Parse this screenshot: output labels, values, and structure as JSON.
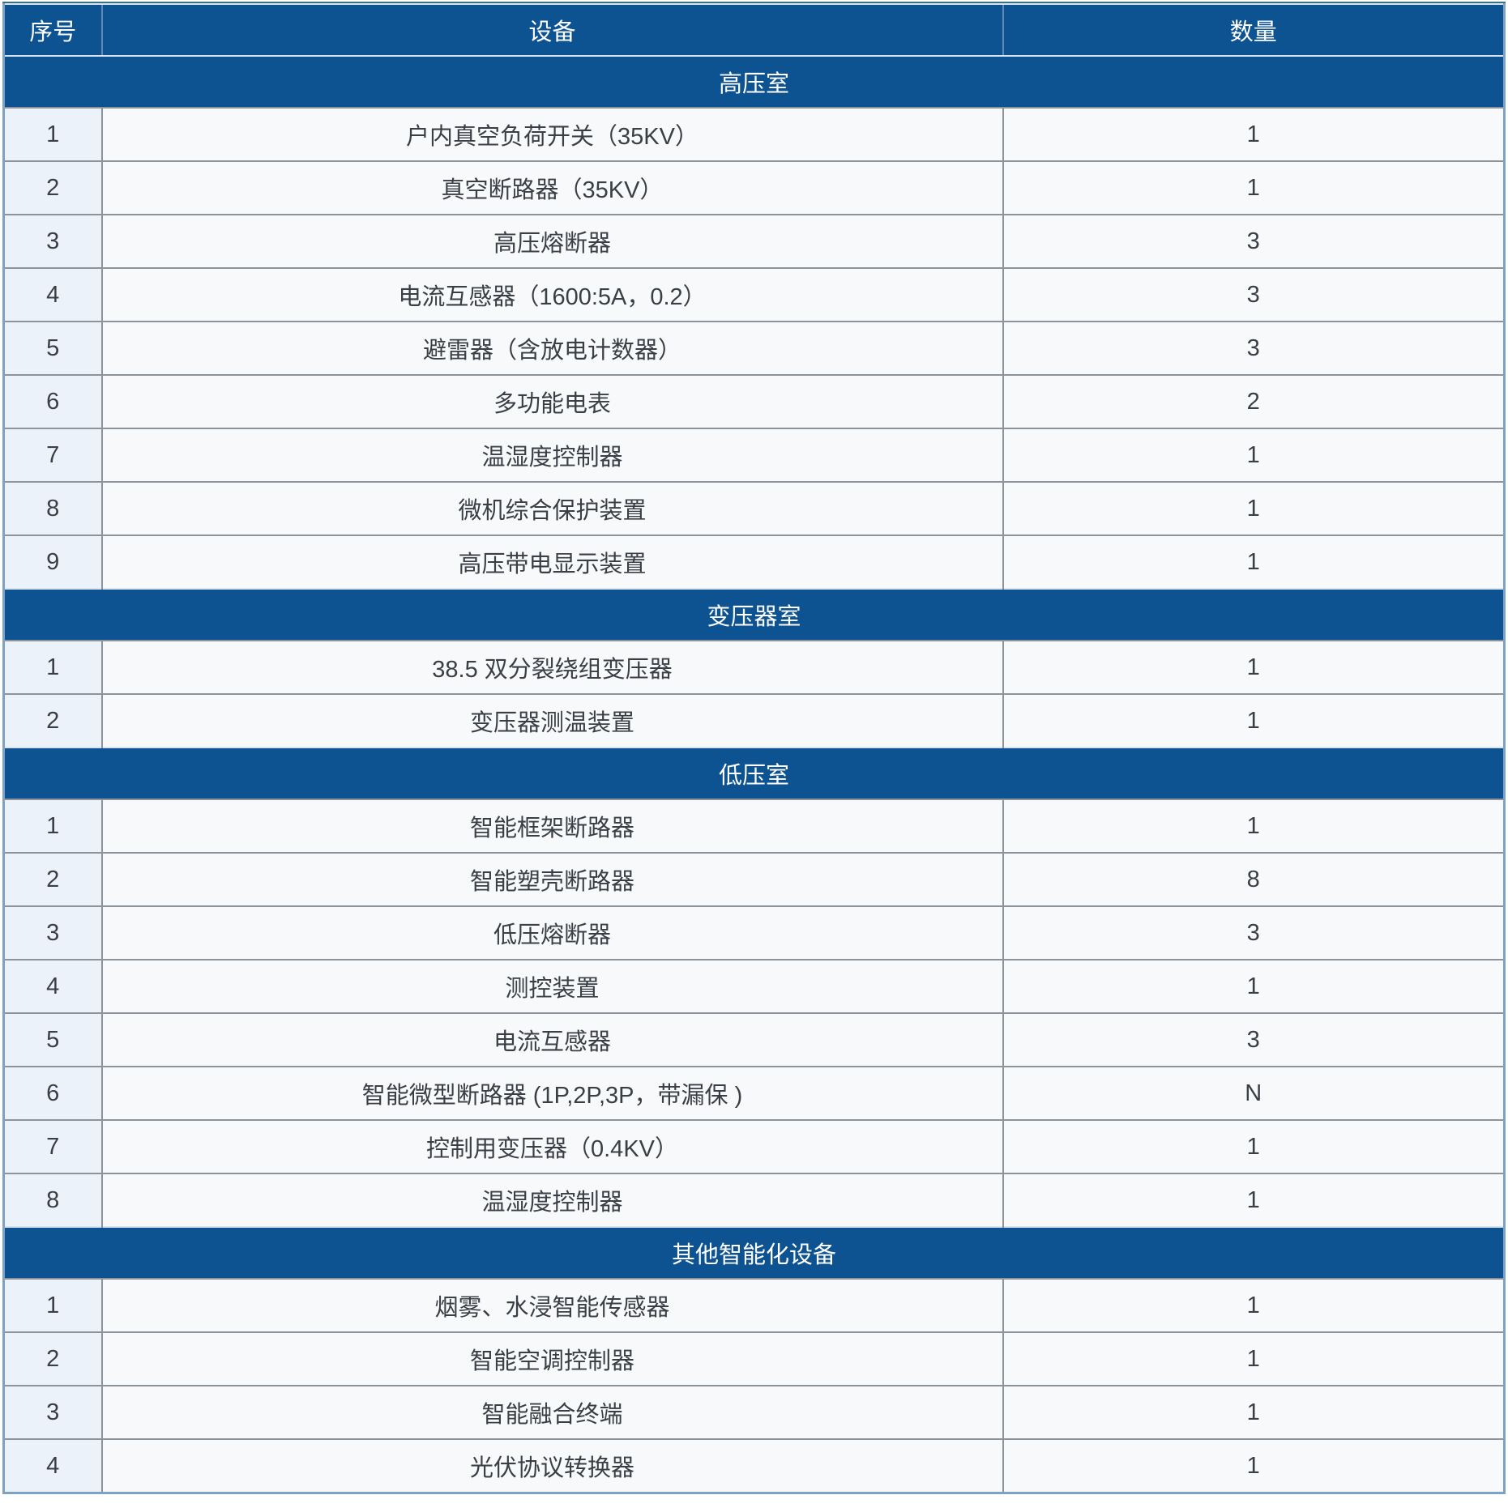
{
  "table": {
    "columns": [
      "序号",
      "设备",
      "数量"
    ],
    "sections": [
      {
        "title": "高压室",
        "rows": [
          [
            "1",
            "户内真空负荷开关（35KV）",
            "1"
          ],
          [
            "2",
            "真空断路器（35KV）",
            "1"
          ],
          [
            "3",
            "高压熔断器",
            "3"
          ],
          [
            "4",
            "电流互感器（1600:5A，0.2）",
            "3"
          ],
          [
            "5",
            "避雷器（含放电计数器）",
            "3"
          ],
          [
            "6",
            "多功能电表",
            "2"
          ],
          [
            "7",
            "温湿度控制器",
            "1"
          ],
          [
            "8",
            "微机综合保护装置",
            "1"
          ],
          [
            "9",
            "高压带电显示装置",
            "1"
          ]
        ]
      },
      {
        "title": "变压器室",
        "rows": [
          [
            "1",
            "38.5 双分裂绕组变压器",
            "1"
          ],
          [
            "2",
            "变压器测温装置",
            "1"
          ]
        ]
      },
      {
        "title": "低压室",
        "rows": [
          [
            "1",
            "智能框架断路器",
            "1"
          ],
          [
            "2",
            "智能塑壳断路器",
            "8"
          ],
          [
            "3",
            "低压熔断器",
            "3"
          ],
          [
            "4",
            "测控装置",
            "1"
          ],
          [
            "5",
            "电流互感器",
            "3"
          ],
          [
            "6",
            "智能微型断路器 (1P,2P,3P，带漏保 )",
            "N"
          ],
          [
            "7",
            "控制用变压器（0.4KV）",
            "1"
          ],
          [
            "8",
            "温湿度控制器",
            "1"
          ]
        ]
      },
      {
        "title": "其他智能化设备",
        "rows": [
          [
            "1",
            "烟雾、水浸智能传感器",
            "1"
          ],
          [
            "2",
            "智能空调控制器",
            "1"
          ],
          [
            "3",
            "智能融合终端",
            "1"
          ],
          [
            "4",
            "光伏协议转换器",
            "1"
          ]
        ]
      }
    ]
  },
  "colors": {
    "header_bg": "#0D5291",
    "section_bg": "#0D5291",
    "header_text": "#FFFFFF",
    "cell_text": "#3A3F45",
    "index_col_bg": "#EBF2FA",
    "cell_bg": "#F8F9FA",
    "grid_line": "#8D939B",
    "light_line": "#D8E4F0",
    "outer_border": "#7EA2C6",
    "top_accent": "#3A7280"
  }
}
